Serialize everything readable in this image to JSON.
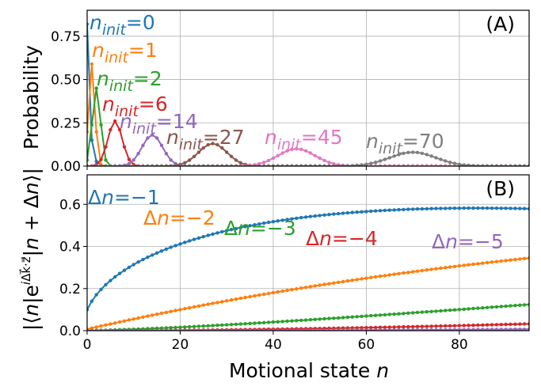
{
  "figure": {
    "xlabel_prefix": "Motional state ",
    "xlabel_var": "n",
    "ylabel_top": "Probability",
    "ylabel_bottom": "|⟨n|e^{iΔk⃗·z⃗}|n + Δn⟩|"
  },
  "chart_data": [
    {
      "type": "line",
      "panel_label": "(A)",
      "xlabel": "",
      "ylabel": "Probability",
      "xlim": [
        0,
        95
      ],
      "ylim": [
        0,
        0.9
      ],
      "yticks": [
        "0.00",
        "0.25",
        "0.50",
        "0.75"
      ],
      "grid": true,
      "x": "integers 0..95",
      "series": [
        {
          "name": "n_init=0",
          "label_base": "n",
          "label_sub": "init",
          "label_value": "=0",
          "color": "#1f77b4",
          "peak_x": 0,
          "peak_y": 0.82
        },
        {
          "name": "n_init=1",
          "label_base": "n",
          "label_sub": "init",
          "label_value": "=1",
          "color": "#ff7f0e",
          "peak_x": 1,
          "peak_y": 0.59
        },
        {
          "name": "n_init=2",
          "label_base": "n",
          "label_sub": "init",
          "label_value": "=2",
          "color": "#2ca02c",
          "peak_x": 2,
          "peak_y": 0.45
        },
        {
          "name": "n_init=6",
          "label_base": "n",
          "label_sub": "init",
          "label_value": "=6",
          "color": "#d62728",
          "peak_x": 6,
          "peak_y": 0.26
        },
        {
          "name": "n_init=14",
          "label_base": "n",
          "label_sub": "init",
          "label_value": "=14",
          "color": "#9467bd",
          "peak_x": 14,
          "peak_y": 0.18
        },
        {
          "name": "n_init=27",
          "label_base": "n",
          "label_sub": "init",
          "label_value": "=27",
          "color": "#8c564b",
          "peak_x": 27,
          "peak_y": 0.13
        },
        {
          "name": "n_init=45",
          "label_base": "n",
          "label_sub": "init",
          "label_value": "=45",
          "color": "#e377c2",
          "peak_x": 45,
          "peak_y": 0.1
        },
        {
          "name": "n_init=70",
          "label_base": "n",
          "label_sub": "init",
          "label_value": "=70",
          "color": "#7f7f7f",
          "peak_x": 70,
          "peak_y": 0.08
        }
      ]
    },
    {
      "type": "line",
      "panel_label": "(B)",
      "xlabel": "Motional state n",
      "ylabel": "|⟨n|e^{iΔk⃗·z⃗}|n + Δn⟩|",
      "xlim": [
        0,
        95
      ],
      "ylim": [
        0,
        0.74
      ],
      "yticks": [
        "0.0",
        "0.2",
        "0.4",
        "0.6"
      ],
      "xticks": [
        "0",
        "20",
        "40",
        "60",
        "80"
      ],
      "grid": true,
      "x": "integers 0..95",
      "series": [
        {
          "name": "Δn=−1",
          "label_base": "Δn",
          "label_value": "=−1",
          "color": "#1f77b4",
          "dn": 1
        },
        {
          "name": "Δn=−2",
          "label_base": "Δn",
          "label_value": "=−2",
          "color": "#ff7f0e",
          "dn": 2
        },
        {
          "name": "Δn=−3",
          "label_base": "Δn",
          "label_value": "=−3",
          "color": "#2ca02c",
          "dn": 3
        },
        {
          "name": "Δn=−4",
          "label_base": "Δn",
          "label_value": "=−4",
          "color": "#d62728",
          "dn": 4
        },
        {
          "name": "Δn=−5",
          "label_base": "Δn",
          "label_value": "=−5",
          "color": "#9467bd",
          "dn": 5
        }
      ]
    }
  ]
}
